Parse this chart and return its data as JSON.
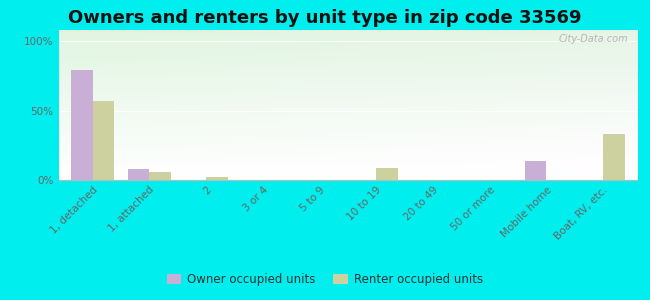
{
  "title": "Owners and renters by unit type in zip code 33569",
  "categories": [
    "1, detached",
    "1, attached",
    "2",
    "3 or 4",
    "5 to 9",
    "10 to 19",
    "20 to 49",
    "50 or more",
    "Mobile home",
    "Boat, RV, etc."
  ],
  "owner_values": [
    79,
    8,
    0,
    0,
    0,
    0,
    0,
    0,
    14,
    0
  ],
  "renter_values": [
    57,
    6,
    2,
    0,
    0,
    9,
    0,
    0,
    0,
    33
  ],
  "owner_color": "#c9aed6",
  "renter_color": "#cdd1a0",
  "background_color": "#00eeee",
  "ylabel_ticks": [
    "0%",
    "50%",
    "100%"
  ],
  "ytick_vals": [
    0,
    50,
    100
  ],
  "ylim": [
    0,
    108
  ],
  "bar_width": 0.38,
  "legend_owner": "Owner occupied units",
  "legend_renter": "Renter occupied units",
  "title_fontsize": 13,
  "tick_fontsize": 7.5,
  "watermark": "City-Data.com"
}
